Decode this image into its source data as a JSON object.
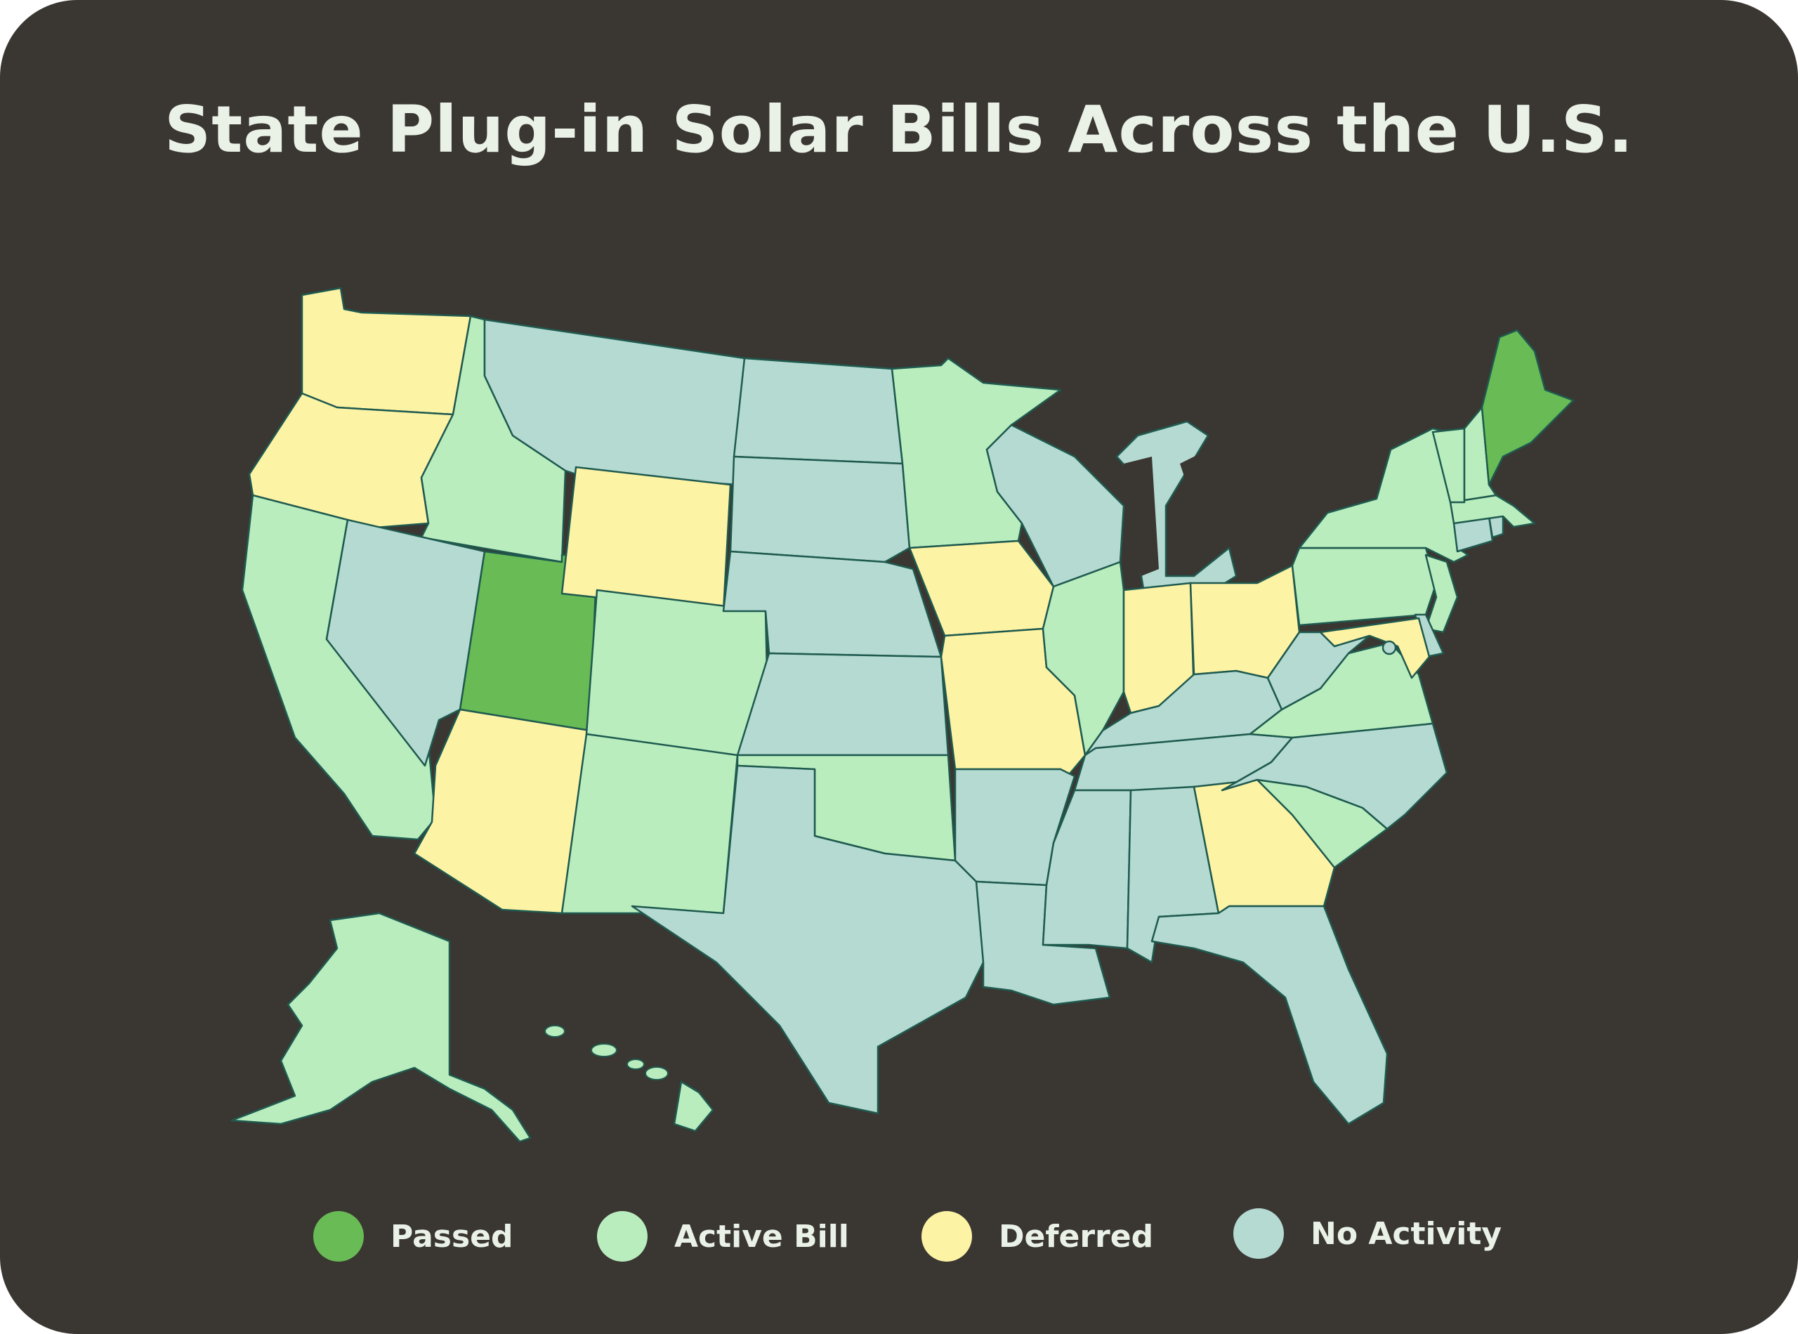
{
  "title": "State Plug-in Solar Bills Across the U.S.",
  "colors": {
    "background": "#3a3632",
    "border": "#1f5a4f",
    "passed": "#68bb55",
    "active": "#b9edbe",
    "deferred": "#fdf3a5",
    "none": "#b4dad2",
    "text": "#eaf2e8"
  },
  "legend": [
    {
      "status": "passed",
      "label": "Passed"
    },
    {
      "status": "active",
      "label": "Active Bill"
    },
    {
      "status": "deferred",
      "label": "Deferred"
    },
    {
      "status": "none",
      "label": "No Activity"
    }
  ],
  "states": {
    "WA": "deferred",
    "OR": "deferred",
    "CA": "active",
    "ID": "active",
    "NV": "none",
    "UT": "passed",
    "AZ": "deferred",
    "MT": "none",
    "WY": "deferred",
    "CO": "active",
    "NM": "active",
    "ND": "none",
    "SD": "none",
    "NE": "none",
    "KS": "none",
    "OK": "active",
    "TX": "none",
    "MN": "active",
    "IA": "deferred",
    "MO": "deferred",
    "AR": "none",
    "LA": "none",
    "WI": "none",
    "IL": "active",
    "MI": "none",
    "IN": "deferred",
    "OH": "deferred",
    "KY": "none",
    "TN": "none",
    "MS": "none",
    "AL": "none",
    "GA": "deferred",
    "FL": "none",
    "SC": "active",
    "NC": "none",
    "VA": "active",
    "WV": "none",
    "PA": "active",
    "NY": "active",
    "NJ": "active",
    "DE": "none",
    "MD": "deferred",
    "DC": "none",
    "CT": "none",
    "RI": "none",
    "MA": "active",
    "VT": "active",
    "NH": "active",
    "ME": "passed",
    "AK": "active",
    "HI": "active"
  }
}
